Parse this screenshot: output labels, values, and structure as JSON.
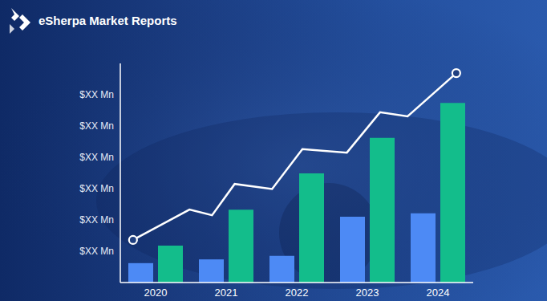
{
  "chart_data": {
    "type": "bar",
    "title": "eSherpa Market Reports",
    "categories": [
      "2020",
      "2021",
      "2022",
      "2023",
      "2024"
    ],
    "series": [
      {
        "color": "#4d8af5",
        "values": [
          6.2,
          7.4,
          8.5,
          21.0,
          22.1
        ]
      },
      {
        "color": "#13bd8b",
        "values": [
          11.8,
          23.3,
          34.9,
          46.2,
          57.4
        ]
      },
      {
        "type": "line",
        "color": "#ffffff",
        "marker": "circle",
        "x": [
          -0.32,
          0.48,
          0.8,
          1.12,
          1.65,
          2.08,
          2.71,
          3.18,
          3.57,
          4.26
        ],
        "values": [
          13.6,
          23.3,
          21.5,
          31.5,
          29.9,
          42.6,
          41.5,
          54.4,
          53.1,
          66.9
        ]
      }
    ],
    "ylim": [
      0,
      70
    ],
    "yticks": [
      {
        "value": 10,
        "label": "$XX Mn"
      },
      {
        "value": 20,
        "label": "$XX Mn"
      },
      {
        "value": 30,
        "label": "$XX Mn"
      },
      {
        "value": 40,
        "label": "$XX Mn"
      },
      {
        "value": 50,
        "label": "$XX Mn"
      },
      {
        "value": 60,
        "label": "$XX Mn"
      }
    ],
    "grid": false
  }
}
